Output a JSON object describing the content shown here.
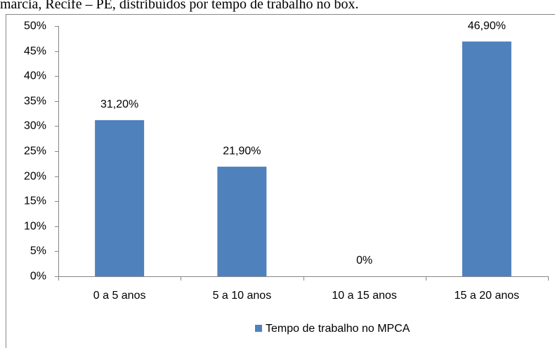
{
  "caption": "marcia, Recife – PE, distribuídos por tempo de trabalho no box.",
  "chart_data": {
    "type": "bar",
    "categories": [
      "0 a 5 anos",
      "5 a 10 anos",
      "10 a 15 anos",
      "15 a 20 anos"
    ],
    "series": [
      {
        "name": "Tempo de trabalho no MPCA",
        "color": "#4f81bd",
        "values": [
          31.2,
          21.9,
          0,
          46.9
        ],
        "value_labels": [
          "31,20%",
          "21,90%",
          "0%",
          "46,90%"
        ]
      }
    ],
    "ylim": [
      0,
      50
    ],
    "yticks": [
      {
        "value": 0,
        "label": "0%"
      },
      {
        "value": 5,
        "label": "5%"
      },
      {
        "value": 10,
        "label": "10%"
      },
      {
        "value": 15,
        "label": "15%"
      },
      {
        "value": 20,
        "label": "20%"
      },
      {
        "value": 25,
        "label": "25%"
      },
      {
        "value": 30,
        "label": "30%"
      },
      {
        "value": 35,
        "label": "35%"
      },
      {
        "value": 40,
        "label": "40%"
      },
      {
        "value": 45,
        "label": "45%"
      },
      {
        "value": 50,
        "label": "50%"
      }
    ],
    "grid": false,
    "legend": "bottom"
  }
}
